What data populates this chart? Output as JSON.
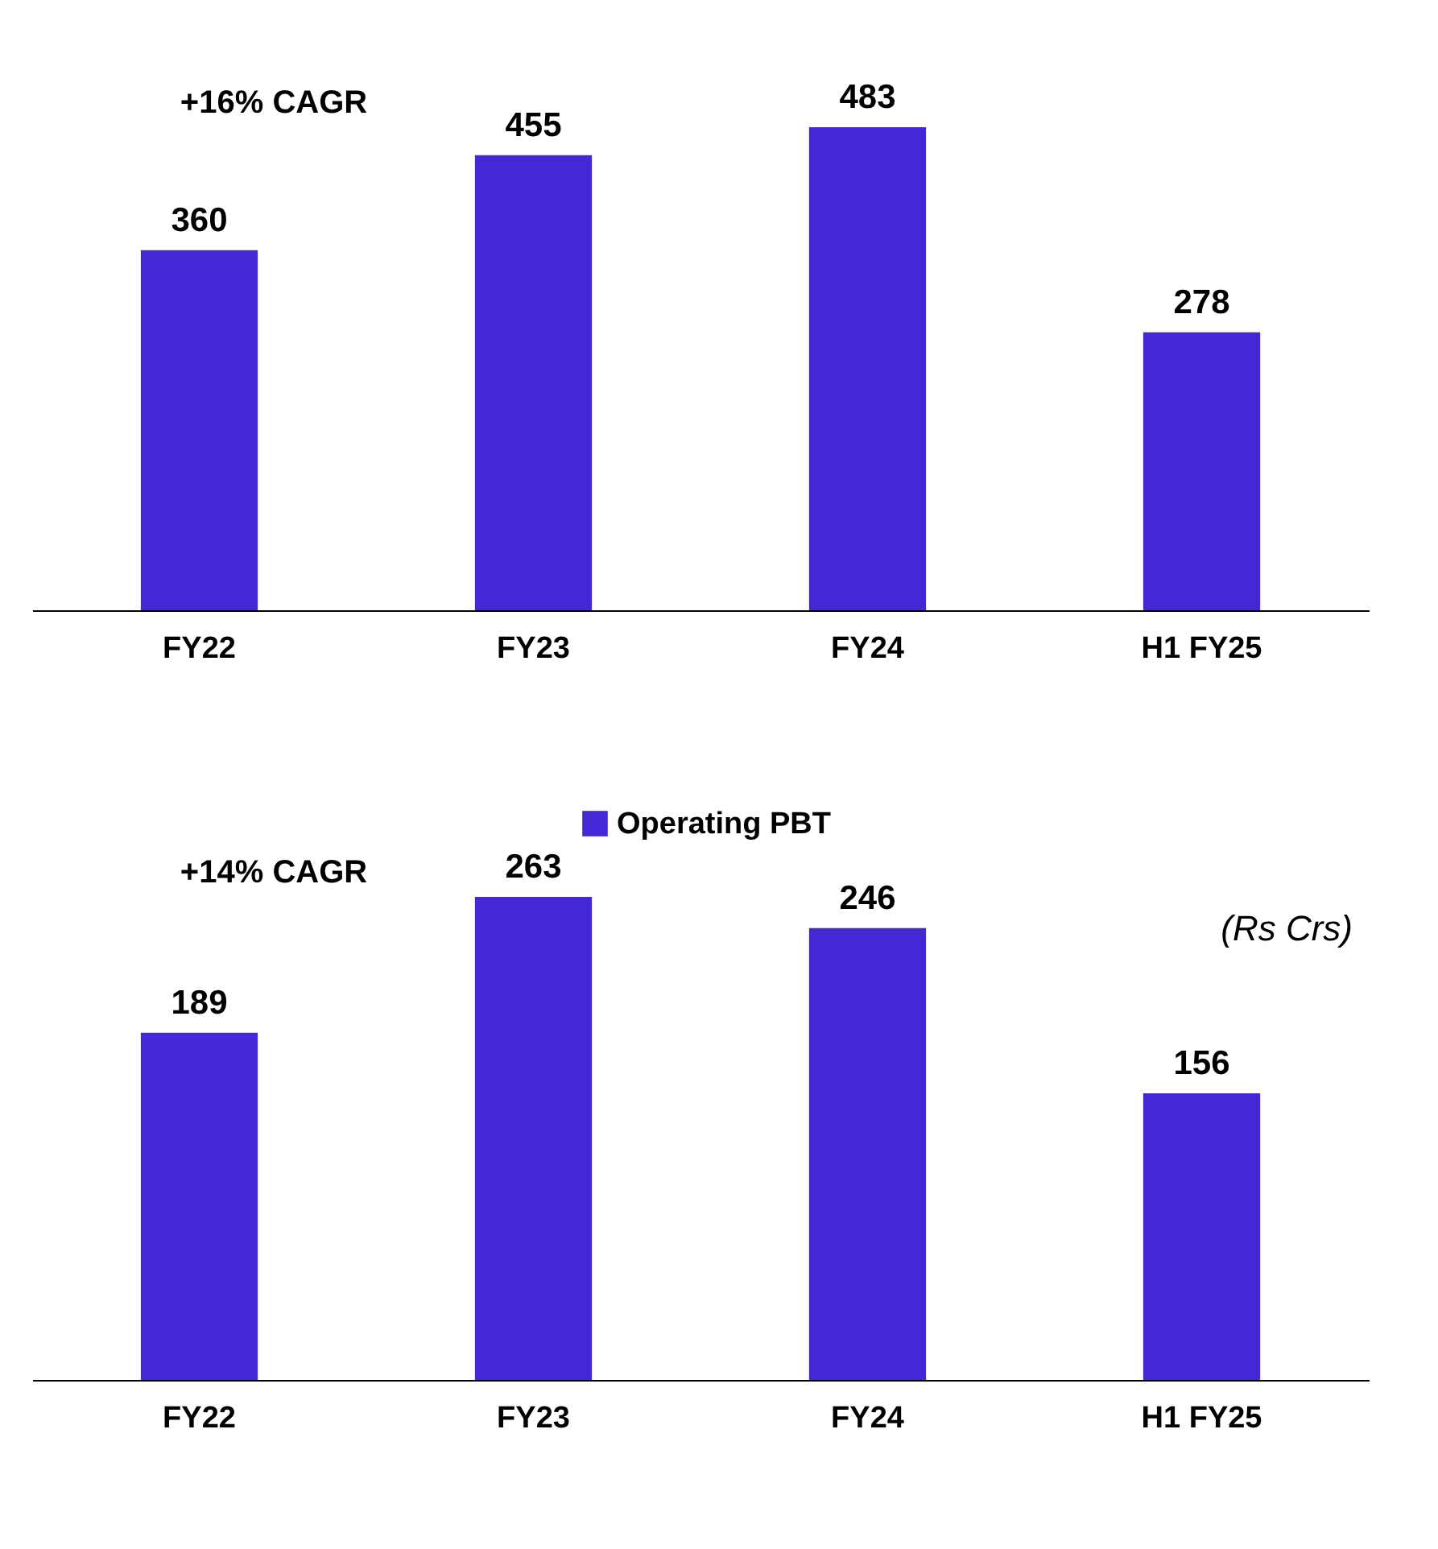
{
  "chart_data": [
    {
      "type": "bar",
      "categories": [
        "FY22",
        "FY23",
        "FY24",
        "H1 FY25"
      ],
      "series": [
        {
          "color": "#4527d6",
          "values": [
            360,
            455,
            483,
            278
          ]
        }
      ],
      "data_labels": true,
      "legend": false,
      "grid": false,
      "annotations": [
        "+16% CAGR"
      ]
    },
    {
      "type": "bar",
      "categories": [
        "FY22",
        "FY23",
        "FY24",
        "H1 FY25"
      ],
      "series": [
        {
          "name": "Operating PBT",
          "color": "#4527d6",
          "values": [
            189,
            263,
            246,
            156
          ]
        }
      ],
      "data_labels": true,
      "legend": "top",
      "grid": false,
      "annotations": [
        "+14% CAGR",
        "(Rs Crs)"
      ]
    }
  ]
}
